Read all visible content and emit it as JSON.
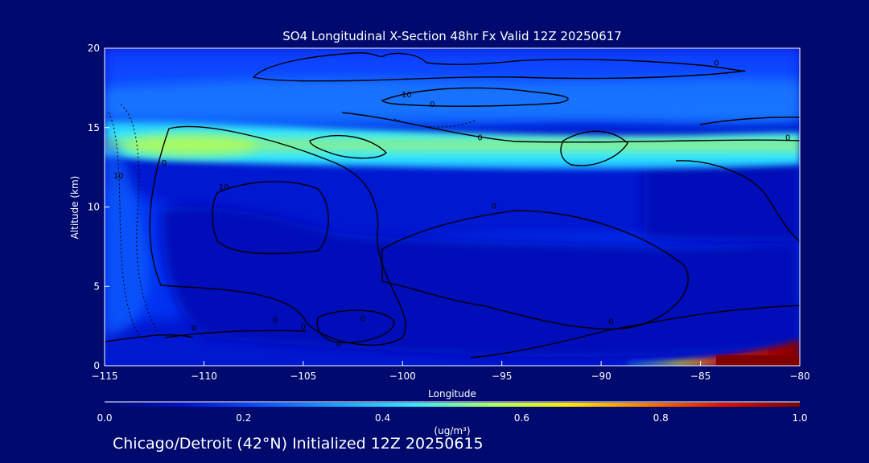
{
  "chart_data": {
    "type": "heatmap",
    "title": "SO4 Longitudinal X-Section 48hr  Fx Valid 12Z 20250617",
    "xlabel": "Longitude",
    "ylabel": "Altitude (km)",
    "xlim": [
      -115,
      -80
    ],
    "ylim": [
      0,
      20
    ],
    "x_ticks": [
      -115,
      -110,
      -105,
      -100,
      -95,
      -90,
      -85,
      -80
    ],
    "x_tick_labels": [
      "−115",
      "−110",
      "−105",
      "−100",
      "−95",
      "−90",
      "−85",
      "−80"
    ],
    "y_ticks": [
      0,
      5,
      10,
      15,
      20
    ],
    "y_tick_labels": [
      "0",
      "5",
      "10",
      "15",
      "20"
    ],
    "colorbar": {
      "label": "(ug/m³)",
      "range": [
        0.0,
        1.0
      ],
      "tick_labels": [
        "0.0",
        "0.2",
        "0.4",
        "0.6",
        "0.8",
        "1.0"
      ],
      "colors": [
        "#000a6e",
        "#0010c8",
        "#0a50ff",
        "#1aa0ff",
        "#30e8ff",
        "#a8ff60",
        "#ffe800",
        "#ff7800",
        "#e01000",
        "#800000"
      ]
    },
    "features": [
      {
        "name": "upper SO4 layer",
        "lon": [
          -115,
          -80
        ],
        "alt": [
          13,
          15
        ],
        "max_value": 0.6
      },
      {
        "name": "stratospheric band",
        "lon": [
          -115,
          -80
        ],
        "alt": [
          16,
          20
        ],
        "max_value": 0.3
      },
      {
        "name": "surface plume",
        "lon": [
          -86,
          -80
        ],
        "alt": [
          0,
          1
        ],
        "max_value": 1.0
      }
    ],
    "contour_labels": [
      {
        "text": "0",
        "lon": -98.5,
        "alt": 16.3
      },
      {
        "text": "10",
        "lon": -99.8,
        "alt": 16.9
      },
      {
        "text": "0",
        "lon": -84.2,
        "alt": 18.9
      },
      {
        "text": "0",
        "lon": -96.1,
        "alt": 14.2
      },
      {
        "text": "0",
        "lon": -80.6,
        "alt": 14.2
      },
      {
        "text": "0",
        "lon": -112.0,
        "alt": 12.6
      },
      {
        "text": "10",
        "lon": -114.3,
        "alt": 11.8
      },
      {
        "text": "10",
        "lon": -109.0,
        "alt": 11.1
      },
      {
        "text": "0",
        "lon": -95.4,
        "alt": 9.9
      },
      {
        "text": "0",
        "lon": -106.4,
        "alt": 2.7
      },
      {
        "text": "0",
        "lon": -105.0,
        "alt": 2.3
      },
      {
        "text": "0",
        "lon": -110.5,
        "alt": 2.2
      },
      {
        "text": "0",
        "lon": -102.0,
        "alt": 2.8
      },
      {
        "text": "0",
        "lon": -103.2,
        "alt": 1.2
      },
      {
        "text": "0",
        "lon": -89.5,
        "alt": 2.6
      }
    ]
  },
  "footer": {
    "location_text": "Chicago/Detroit (42°N) Initialized 12Z 20250615"
  }
}
